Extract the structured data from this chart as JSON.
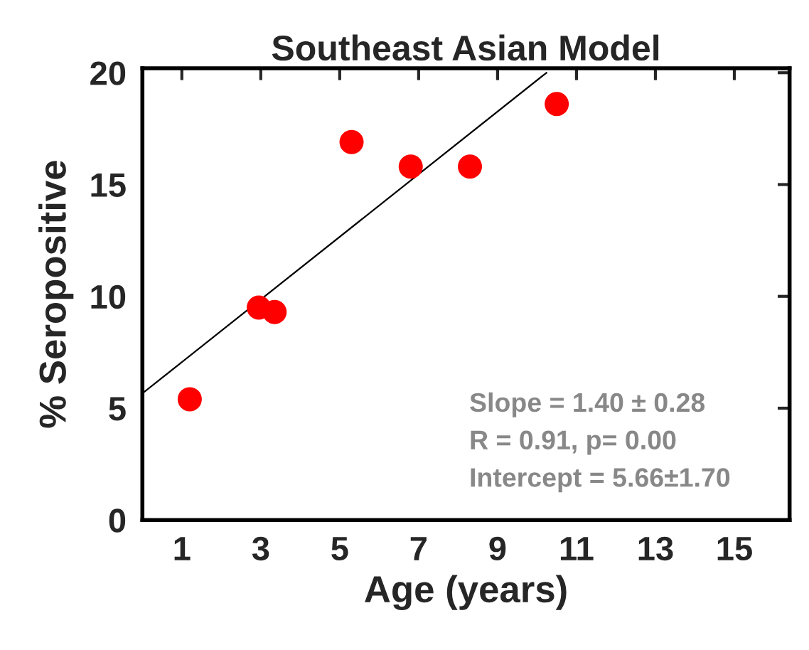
{
  "chart_data": {
    "type": "scatter",
    "title": "Southeast Asian Model",
    "xlabel": "Age (years)",
    "ylabel": "% Seropositive",
    "xlim": [
      0,
      16.4
    ],
    "xticks": [
      1,
      3,
      5,
      7,
      9,
      11,
      13,
      15
    ],
    "ylim": [
      0,
      20.2
    ],
    "yticks": [
      0,
      5,
      10,
      15,
      20
    ],
    "series": [
      {
        "color": "#ff0000",
        "x": [
          1.2,
          2.95,
          3.35,
          5.3,
          6.8,
          8.3,
          10.5
        ],
        "values": [
          5.4,
          9.5,
          9.3,
          16.9,
          15.8,
          15.8,
          18.6
        ]
      },
      {
        "type": "line",
        "marker": "none",
        "color": "#000000",
        "x": [
          0,
          10.24
        ],
        "values": [
          5.66,
          20
        ]
      }
    ],
    "marker": "circle",
    "grid": false,
    "legend": false,
    "annotations": [
      "Slope = 1.40 ± 0.28",
      "R = 0.91, p= 0.00",
      "Intercept = 5.66±1.70"
    ]
  }
}
